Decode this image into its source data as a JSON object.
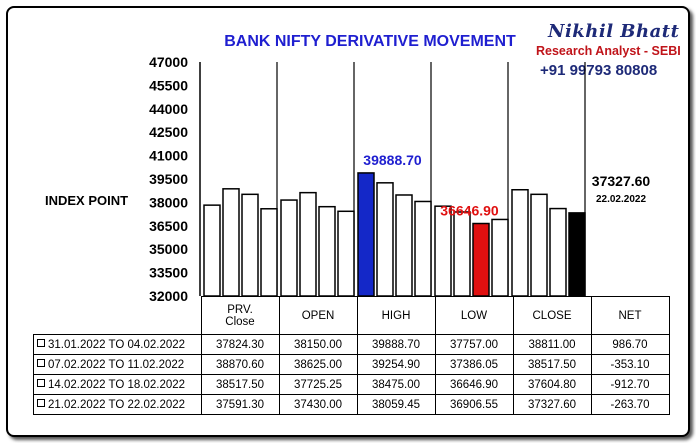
{
  "title": "BANK NIFTY DERIVATIVE MOVEMENT",
  "brand": {
    "name": "Nikhil Bhatt",
    "role": "Research Analyst - SEBI",
    "phone": "+91 99793 80808"
  },
  "colors": {
    "title": "#1f1fd0",
    "high_bar": "#1428c8",
    "low_bar": "#e01010",
    "close_bar": "#000000"
  },
  "chart_data": {
    "type": "bar",
    "title": "BANK NIFTY DERIVATIVE MOVEMENT",
    "ylabel": "INDEX POINT",
    "ylim": [
      32000,
      47000
    ],
    "yticks": [
      47000,
      45500,
      44000,
      42500,
      41000,
      39500,
      38000,
      36500,
      35000,
      33500,
      32000
    ],
    "categories": [
      "PRV. Close",
      "OPEN",
      "HIGH",
      "LOW",
      "CLOSE"
    ],
    "series": [
      {
        "name": "31.01.2022 TO 04.02.2022",
        "values": [
          37824.3,
          38150.0,
          39888.7,
          37757.0,
          38811.0
        ]
      },
      {
        "name": "07.02.2022 TO 11.02.2022",
        "values": [
          38870.6,
          38625.0,
          39254.9,
          37386.05,
          38517.5
        ]
      },
      {
        "name": "14.02.2022 TO 18.02.2022",
        "values": [
          38517.5,
          37725.25,
          38475.0,
          36646.9,
          37604.8
        ]
      },
      {
        "name": "21.02.2022 TO 22.02.2022",
        "values": [
          37591.3,
          37430.0,
          38059.45,
          36906.55,
          37327.6
        ]
      }
    ],
    "annotations": [
      {
        "text": "39888.70",
        "color": "#1f1fd0",
        "category": "HIGH",
        "value": 39888.7
      },
      {
        "text": "36646.90",
        "color": "#e01010",
        "category": "LOW",
        "value": 36646.9
      },
      {
        "text": "37327.60",
        "subtext": "22.02.2022",
        "color": "#000000",
        "category": "CLOSE",
        "value": 37327.6
      }
    ],
    "grid": false
  },
  "table": {
    "headers": [
      "PRV.\nClose",
      "OPEN",
      "HIGH",
      "LOW",
      "CLOSE",
      "NET"
    ],
    "rows": [
      {
        "label": "31.01.2022 TO 04.02.2022",
        "cells": [
          "37824.30",
          "38150.00",
          "39888.70",
          "37757.00",
          "38811.00",
          "986.70"
        ]
      },
      {
        "label": "07.02.2022 TO 11.02.2022",
        "cells": [
          "38870.60",
          "38625.00",
          "39254.90",
          "37386.05",
          "38517.50",
          "-353.10"
        ]
      },
      {
        "label": "14.02.2022 TO 18.02.2022",
        "cells": [
          "38517.50",
          "37725.25",
          "38475.00",
          "36646.90",
          "37604.80",
          "-912.70"
        ]
      },
      {
        "label": "21.02.2022 TO 22.02.2022",
        "cells": [
          "37591.30",
          "37430.00",
          "38059.45",
          "36906.55",
          "37327.60",
          "-263.70"
        ]
      }
    ]
  }
}
